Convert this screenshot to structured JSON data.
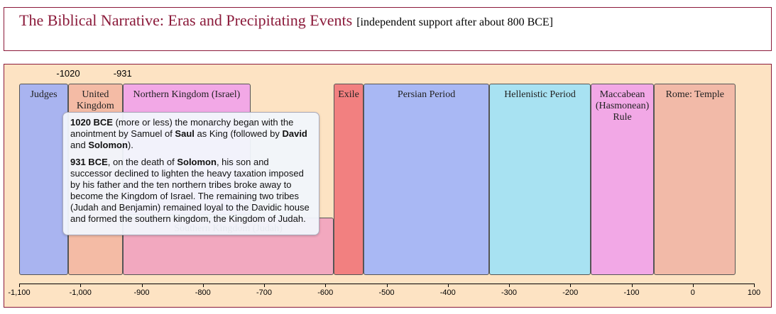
{
  "chart_data": {
    "type": "timeline",
    "title": "The Biblical Narrative: Eras and Precipitating Events",
    "subtitle": "[independent support after about 800 BCE]",
    "xlim": [
      -1100,
      100
    ],
    "xticks": [
      {
        "value": -1100,
        "label": "-1,100"
      },
      {
        "value": -1000,
        "label": "-1,000"
      },
      -900,
      -800,
      -700,
      -600,
      -500,
      -400,
      -300,
      -200,
      -100,
      0,
      100
    ],
    "markers": [
      -1020,
      -931
    ],
    "eras": [
      {
        "name": "Judges",
        "start": -1100,
        "end": -1020,
        "color": "#a9b4f0",
        "lane": "full"
      },
      {
        "name": "United Kingdom",
        "start": -1020,
        "end": -931,
        "color": "#f4bba5",
        "lane": "full"
      },
      {
        "name": "Northern Kingdom (Israel)",
        "start": -931,
        "end": -722,
        "color": "#f2a8e6",
        "lane": "upper"
      },
      {
        "name": "Southern Kingdom (Judah)",
        "start": -931,
        "end": -586,
        "color": "#f2a8bf",
        "lane": "lower"
      },
      {
        "name": "Exile",
        "start": -586,
        "end": -538,
        "color": "#f28080",
        "lane": "full"
      },
      {
        "name": "Persian Period",
        "start": -538,
        "end": -332,
        "color": "#a9b8f4",
        "lane": "full"
      },
      {
        "name": "Hellenistic Period",
        "start": -332,
        "end": -167,
        "color": "#a8e2f2",
        "lane": "full"
      },
      {
        "name": "Maccabean (Hasmonean) Rule",
        "start": -167,
        "end": -63,
        "color": "#f2a8e6",
        "lane": "full"
      },
      {
        "name": "Rome: Temple",
        "start": -63,
        "end": 70,
        "color": "#f2baa8",
        "lane": "full"
      }
    ],
    "tooltip": {
      "paragraphs": [
        [
          {
            "text": "1020 BCE",
            "bold": true
          },
          {
            "text": " (more or less) the monarchy began with the anointment by Samuel of "
          },
          {
            "text": "Saul",
            "bold": true
          },
          {
            "text": " as King (followed by "
          },
          {
            "text": "David",
            "bold": true
          },
          {
            "text": " and "
          },
          {
            "text": "Solomon",
            "bold": true
          },
          {
            "text": ")."
          }
        ],
        [
          {
            "text": "931 BCE",
            "bold": true
          },
          {
            "text": ", on the death of "
          },
          {
            "text": "Solomon",
            "bold": true
          },
          {
            "text": ", his son and successor declined to lighten the heavy taxation imposed by his father and the ten northern tribes broke away to become the Kingdom of Israel. The remaining two tribes (Judah and Benjamin) remained loyal to the Davidic house and formed the southern kingdom, the Kingdom of Judah."
          }
        ]
      ]
    }
  }
}
